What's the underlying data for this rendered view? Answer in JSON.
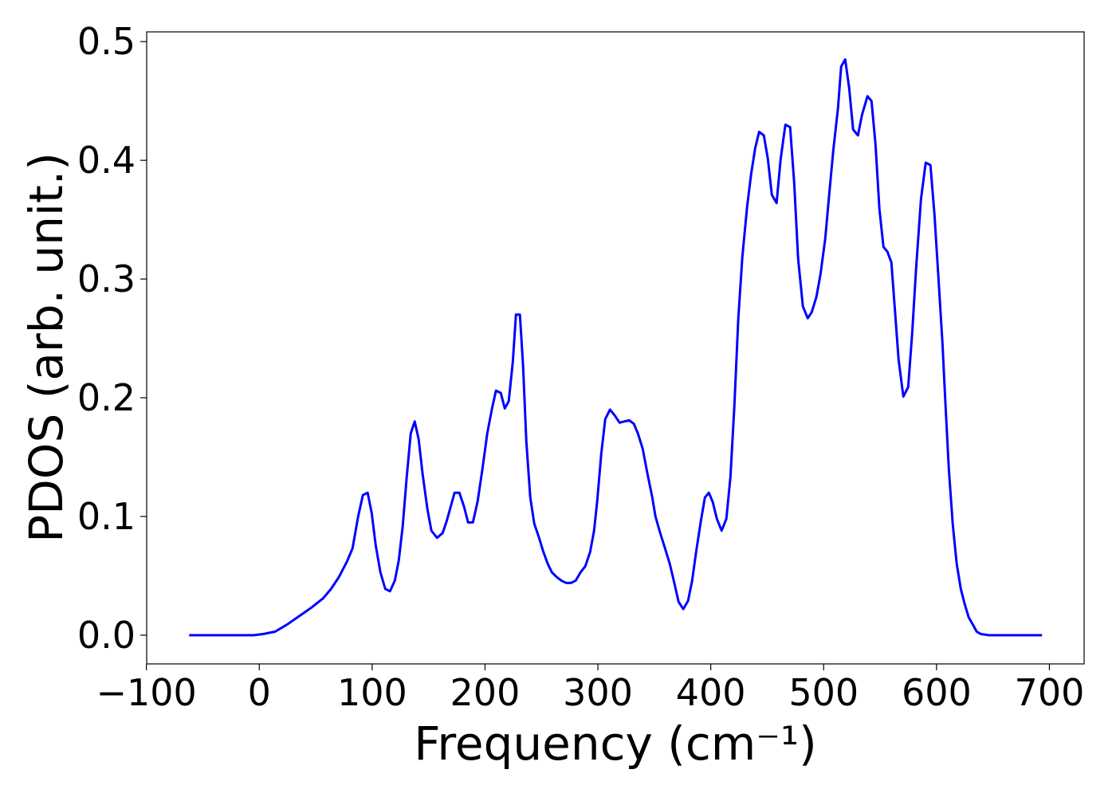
{
  "chart_data": {
    "type": "line",
    "x_label": "Frequency (cm⁻¹)",
    "y_label": "PDOS (arb. unit.)",
    "xlim": [
      -99.75,
      730.75
    ],
    "ylim": [
      -0.0242,
      0.5082
    ],
    "xticks": [
      {
        "value": -100,
        "label": "−100"
      },
      0,
      100,
      200,
      300,
      400,
      500,
      600,
      700
    ],
    "yticks": [
      {
        "value": 0,
        "label": "0.0"
      },
      0.1,
      0.2,
      0.3,
      0.4,
      0.5
    ],
    "grid": false,
    "x": [
      -62.1,
      -4.9,
      3.5,
      14.1,
      24.7,
      35.3,
      45.9,
      56.5,
      63.6,
      70.6,
      77.7,
      82.6,
      87.6,
      91.8,
      96.0,
      99.6,
      103.1,
      107.3,
      111.6,
      115.8,
      120.1,
      123.6,
      127.1,
      130.6,
      134.2,
      137.7,
      141.2,
      144.8,
      149.0,
      152.5,
      157.5,
      162.4,
      166.0,
      169.5,
      173.0,
      177.3,
      181.5,
      185.0,
      189.3,
      193.5,
      197.7,
      202.0,
      206.2,
      209.7,
      214.0,
      217.5,
      221.0,
      224.6,
      227.4,
      230.9,
      233.7,
      236.6,
      240.1,
      243.6,
      247.9,
      251.4,
      255.6,
      259.2,
      263.4,
      267.6,
      271.9,
      276.1,
      280.4,
      284.6,
      288.8,
      293.1,
      296.6,
      299.4,
      303.0,
      306.5,
      310.7,
      315.0,
      319.2,
      323.4,
      327.7,
      331.9,
      335.4,
      339.7,
      343.9,
      348.2,
      351.0,
      355.2,
      359.5,
      363.7,
      367.2,
      371.5,
      375.7,
      379.9,
      383.5,
      387.0,
      391.2,
      394.8,
      398.3,
      401.8,
      405.4,
      409.6,
      413.8,
      417.4,
      420.9,
      424.4,
      428.0,
      432.2,
      435.7,
      439.3,
      442.8,
      447.0,
      450.6,
      454.1,
      458.3,
      461.9,
      466.1,
      470.3,
      473.9,
      477.4,
      481.6,
      485.9,
      489.4,
      493.6,
      497.2,
      501.4,
      504.9,
      508.5,
      512.7,
      515.5,
      519.1,
      522.6,
      526.1,
      530.4,
      533.9,
      538.8,
      542.4,
      545.9,
      549.4,
      553.0,
      556.5,
      560.0,
      562.9,
      566.4,
      570.6,
      574.9,
      578.4,
      581.9,
      586.2,
      590.4,
      594.6,
      598.2,
      601.7,
      605.2,
      608.0,
      610.9,
      614.4,
      617.9,
      621.5,
      625.0,
      628.5,
      632.1,
      635.6,
      639.1,
      646.2,
      693.5
    ],
    "series": [
      {
        "color": "#0000ff",
        "values": [
          0,
          0,
          0.001,
          0.003,
          0.009,
          0.016,
          0.023,
          0.031,
          0.039,
          0.049,
          0.062,
          0.073,
          0.1,
          0.118,
          0.12,
          0.103,
          0.076,
          0.053,
          0.039,
          0.037,
          0.046,
          0.063,
          0.092,
          0.133,
          0.17,
          0.18,
          0.165,
          0.135,
          0.106,
          0.088,
          0.082,
          0.086,
          0.096,
          0.108,
          0.12,
          0.12,
          0.108,
          0.095,
          0.095,
          0.113,
          0.14,
          0.17,
          0.191,
          0.206,
          0.204,
          0.191,
          0.197,
          0.23,
          0.27,
          0.27,
          0.227,
          0.163,
          0.116,
          0.094,
          0.082,
          0.071,
          0.06,
          0.053,
          0.049,
          0.046,
          0.044,
          0.044,
          0.046,
          0.053,
          0.058,
          0.07,
          0.088,
          0.113,
          0.153,
          0.182,
          0.19,
          0.185,
          0.179,
          0.18,
          0.181,
          0.178,
          0.17,
          0.157,
          0.136,
          0.116,
          0.1,
          0.086,
          0.073,
          0.06,
          0.046,
          0.028,
          0.022,
          0.029,
          0.046,
          0.07,
          0.096,
          0.116,
          0.12,
          0.112,
          0.098,
          0.088,
          0.098,
          0.133,
          0.193,
          0.267,
          0.319,
          0.361,
          0.388,
          0.41,
          0.424,
          0.421,
          0.401,
          0.371,
          0.364,
          0.401,
          0.43,
          0.428,
          0.381,
          0.317,
          0.277,
          0.267,
          0.272,
          0.285,
          0.304,
          0.334,
          0.371,
          0.408,
          0.444,
          0.479,
          0.485,
          0.461,
          0.426,
          0.421,
          0.438,
          0.454,
          0.45,
          0.414,
          0.359,
          0.327,
          0.323,
          0.314,
          0.277,
          0.232,
          0.201,
          0.209,
          0.254,
          0.309,
          0.367,
          0.398,
          0.396,
          0.354,
          0.301,
          0.247,
          0.193,
          0.14,
          0.093,
          0.06,
          0.039,
          0.026,
          0.015,
          0.009,
          0.003,
          0.001,
          0,
          0
        ]
      }
    ]
  }
}
